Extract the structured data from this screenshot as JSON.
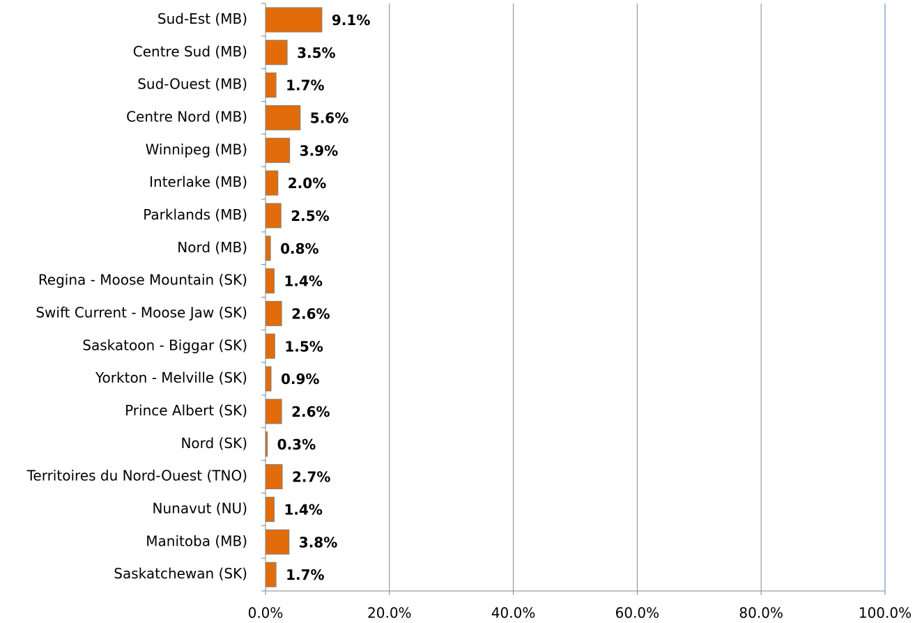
{
  "chart_data": {
    "type": "bar",
    "orientation": "horizontal",
    "categories": [
      "Sud-Est (MB)",
      "Centre Sud (MB)",
      "Sud-Ouest (MB)",
      "Centre Nord (MB)",
      "Winnipeg (MB)",
      "Interlake (MB)",
      "Parklands (MB)",
      "Nord (MB)",
      "Regina - Moose Mountain (SK)",
      "Swift Current - Moose Jaw (SK)",
      "Saskatoon - Biggar (SK)",
      "Yorkton - Melville (SK)",
      "Prince Albert (SK)",
      "Nord (SK)",
      "Territoires du Nord-Ouest (TNO)",
      "Nunavut (NU)",
      "Manitoba (MB)",
      "Saskatchewan (SK)"
    ],
    "values": [
      9.1,
      3.5,
      1.7,
      5.6,
      3.9,
      2.0,
      2.5,
      0.8,
      1.4,
      2.6,
      1.5,
      0.9,
      2.6,
      0.3,
      2.7,
      1.4,
      3.8,
      1.7
    ],
    "value_labels": [
      "9.1%",
      "3.5%",
      "1.7%",
      "5.6%",
      "3.9%",
      "2.0%",
      "2.5%",
      "0.8%",
      "1.4%",
      "2.6%",
      "1.5%",
      "0.9%",
      "2.6%",
      "0.3%",
      "2.7%",
      "1.4%",
      "3.8%",
      "1.7%"
    ],
    "color": "#e36c0a",
    "xlim": [
      0,
      100
    ],
    "xticks": [
      {
        "value": 0,
        "label": "0.0%"
      },
      {
        "value": 20,
        "label": "20.0%"
      },
      {
        "value": 40,
        "label": "40.0%"
      },
      {
        "value": 60,
        "label": "60.0%"
      },
      {
        "value": 80,
        "label": "80.0%"
      },
      {
        "value": 100,
        "label": "100.0%"
      }
    ],
    "grid": true
  }
}
